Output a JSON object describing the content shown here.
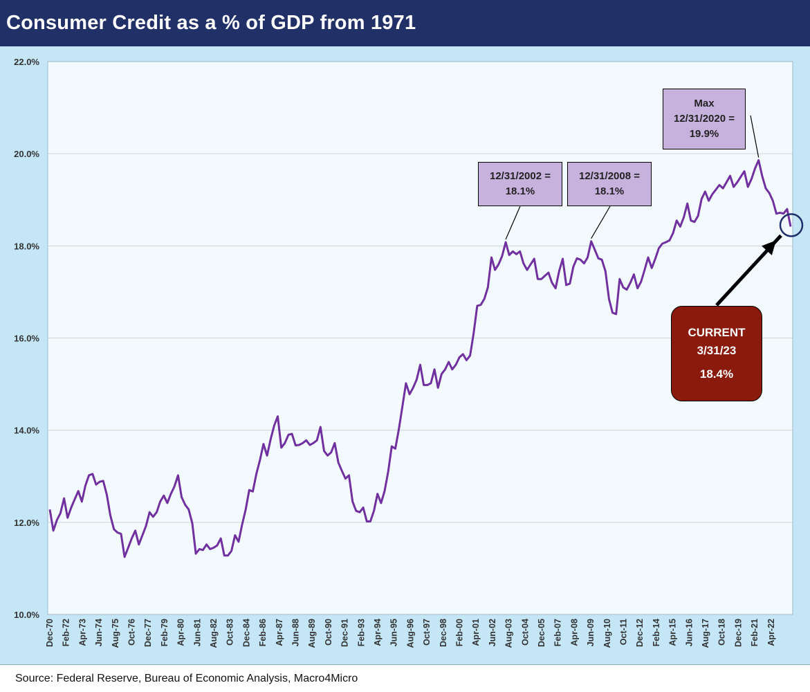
{
  "title": "Consumer Credit as a % of GDP from 1971",
  "source": "Source: Federal Reserve, Bureau of Economic Analysis, Macro4Micro",
  "colors": {
    "title_bg": "#223068",
    "frame_bg": "#c5e6f6",
    "plot_bg": "#f3fafe",
    "series": "#7030a0",
    "callout_bg": "#c7b2de",
    "current_bg": "#8a1b0c",
    "circle": "#1f2f6b"
  },
  "annotations": {
    "peak2002_line1": "12/31/2002 =",
    "peak2002_line2": "18.1%",
    "peak2008_line1": "12/31/2008 =",
    "peak2008_line2": "18.1%",
    "max_line1": "Max",
    "max_line2": "12/31/2020 =",
    "max_line3": "19.9%",
    "current_line1": "CURRENT",
    "current_line2": "3/31/23",
    "current_line3": "18.4%"
  },
  "chart_data": {
    "type": "line",
    "title": "Consumer Credit as a % of GDP from 1971",
    "xlabel": "",
    "ylabel": "",
    "ylim": [
      10,
      22
    ],
    "y_ticks": [
      "10.0%",
      "12.0%",
      "14.0%",
      "16.0%",
      "18.0%",
      "20.0%",
      "22.0%"
    ],
    "x_tick_labels": [
      "Dec-70",
      "Feb-72",
      "Apr-73",
      "Jun-74",
      "Aug-75",
      "Oct-76",
      "Dec-77",
      "Feb-79",
      "Apr-80",
      "Jun-81",
      "Aug-82",
      "Oct-83",
      "Dec-84",
      "Feb-86",
      "Apr-87",
      "Jun-88",
      "Aug-89",
      "Oct-90",
      "Dec-91",
      "Feb-93",
      "Apr-94",
      "Jun-95",
      "Aug-96",
      "Oct-97",
      "Dec-98",
      "Feb-00",
      "Apr-01",
      "Jun-02",
      "Aug-03",
      "Oct-04",
      "Dec-05",
      "Feb-07",
      "Apr-08",
      "Jun-09",
      "Aug-10",
      "Oct-11",
      "Dec-12",
      "Feb-14",
      "Apr-15",
      "Jun-16",
      "Aug-17",
      "Oct-18",
      "Dec-19",
      "Feb-21",
      "Apr-22"
    ],
    "grid": true,
    "frequency": "quarterly",
    "start": "Dec-70",
    "end": "Mar-23",
    "series": [
      {
        "name": "Consumer Credit as a % of GDP",
        "values": [
          12.28,
          11.82,
          12.05,
          12.2,
          12.52,
          12.1,
          12.32,
          12.5,
          12.68,
          12.45,
          12.8,
          13.02,
          13.05,
          12.82,
          12.88,
          12.9,
          12.6,
          12.15,
          11.85,
          11.78,
          11.75,
          11.25,
          11.45,
          11.65,
          11.82,
          11.52,
          11.72,
          11.92,
          12.22,
          12.12,
          12.22,
          12.45,
          12.58,
          12.42,
          12.62,
          12.78,
          13.02,
          12.55,
          12.38,
          12.28,
          11.98,
          11.32,
          11.42,
          11.4,
          11.52,
          11.42,
          11.45,
          11.5,
          11.65,
          11.28,
          11.28,
          11.38,
          11.72,
          11.58,
          11.95,
          12.28,
          12.7,
          12.67,
          13.05,
          13.35,
          13.7,
          13.45,
          13.8,
          14.1,
          14.3,
          13.62,
          13.72,
          13.9,
          13.92,
          13.67,
          13.68,
          13.72,
          13.78,
          13.68,
          13.72,
          13.78,
          14.07,
          13.55,
          13.45,
          13.52,
          13.72,
          13.3,
          13.12,
          12.95,
          13.02,
          12.45,
          12.25,
          12.22,
          12.32,
          12.02,
          12.02,
          12.25,
          12.62,
          12.42,
          12.68,
          13.1,
          13.65,
          13.6,
          14.02,
          14.52,
          15.02,
          14.78,
          14.92,
          15.1,
          15.42,
          14.98,
          14.98,
          15.02,
          15.32,
          14.92,
          15.22,
          15.32,
          15.48,
          15.32,
          15.42,
          15.58,
          15.65,
          15.52,
          15.62,
          16.1,
          16.7,
          16.72,
          16.85,
          17.1,
          17.75,
          17.48,
          17.6,
          17.78,
          18.08,
          17.8,
          17.88,
          17.82,
          17.88,
          17.62,
          17.48,
          17.6,
          17.72,
          17.28,
          17.28,
          17.35,
          17.42,
          17.2,
          17.08,
          17.45,
          17.72,
          17.15,
          17.18,
          17.55,
          17.73,
          17.7,
          17.62,
          17.75,
          18.1,
          17.92,
          17.73,
          17.7,
          17.45,
          16.85,
          16.55,
          16.52,
          17.28,
          17.1,
          17.05,
          17.2,
          17.38,
          17.08,
          17.22,
          17.48,
          17.75,
          17.52,
          17.72,
          17.95,
          18.05,
          18.08,
          18.12,
          18.28,
          18.55,
          18.42,
          18.62,
          18.92,
          18.55,
          18.52,
          18.65,
          19.02,
          19.18,
          18.98,
          19.12,
          19.22,
          19.32,
          19.25,
          19.38,
          19.52,
          19.28,
          19.38,
          19.5,
          19.62,
          19.28,
          19.45,
          19.68,
          19.86,
          19.52,
          19.25,
          19.15,
          18.98,
          18.7,
          18.72,
          18.7,
          18.8,
          18.42
        ]
      }
    ]
  }
}
